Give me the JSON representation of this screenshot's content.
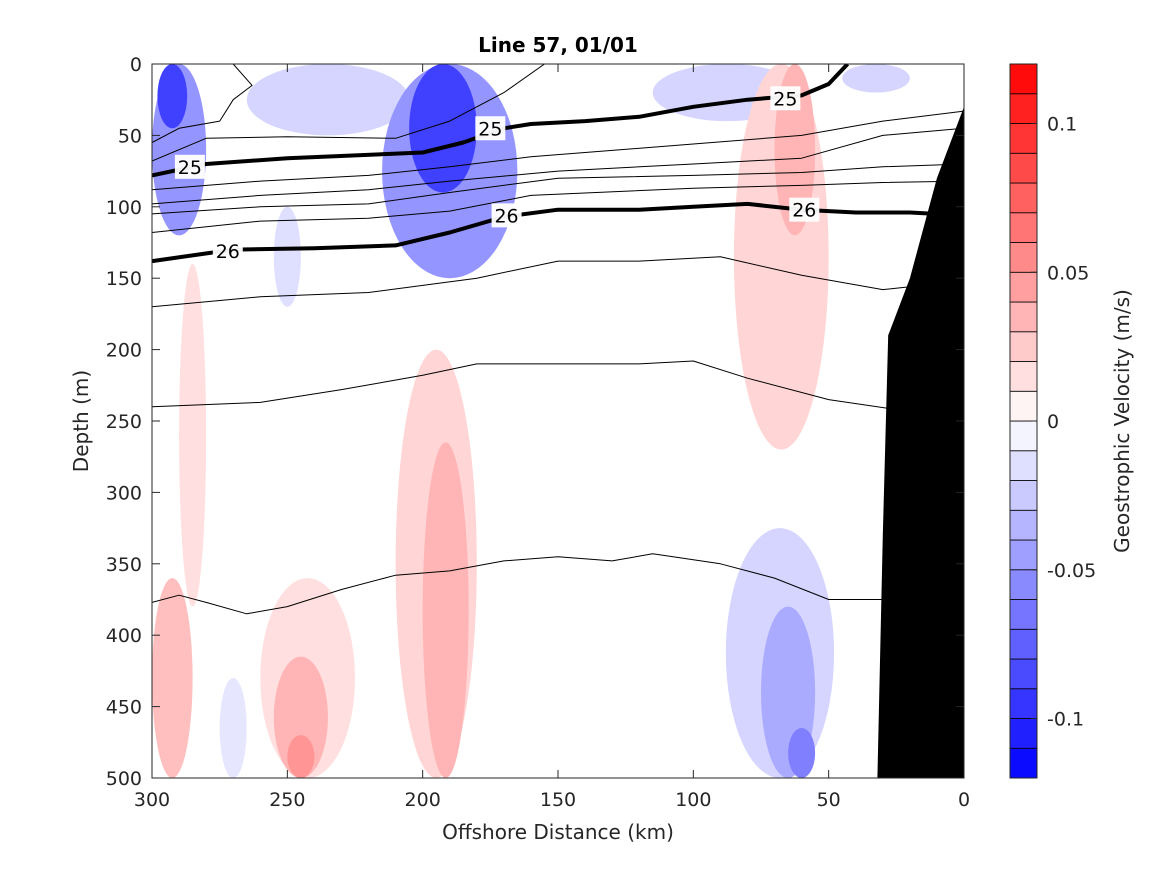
{
  "chart_data": {
    "type": "contour",
    "title": "Line 57, 01/01",
    "xlabel": "Offshore Distance (km)",
    "ylabel": "Depth (m)",
    "xlim": [
      300,
      0
    ],
    "ylim": [
      0,
      500
    ],
    "x_reversed": true,
    "y_reversed": true,
    "xticks": [
      300,
      250,
      200,
      150,
      100,
      50,
      0
    ],
    "yticks": [
      0,
      50,
      100,
      150,
      200,
      250,
      300,
      350,
      400,
      450,
      500
    ],
    "colorbar": {
      "label": "Geostrophic Velocity (m/s)",
      "range": [
        -0.12,
        0.12
      ],
      "step": 0.01,
      "ticks": [
        0.1,
        0.05,
        0,
        -0.05,
        -0.1
      ],
      "tick_labels": [
        "0.1",
        "0.05",
        "0",
        "-0.05",
        "-0.1"
      ],
      "negative_color": "#0000ff",
      "positive_color": "#ff0000",
      "zero_color": "#ffffff"
    },
    "velocity_regions": [
      {
        "x": [
          300,
          280
        ],
        "y": [
          0,
          120
        ],
        "value": -0.05
      },
      {
        "x": [
          298,
          287
        ],
        "y": [
          0,
          45
        ],
        "value": -0.09
      },
      {
        "x": [
          265,
          205
        ],
        "y": [
          0,
          50
        ],
        "value": -0.02
      },
      {
        "x": [
          255,
          245
        ],
        "y": [
          100,
          170
        ],
        "value": -0.015
      },
      {
        "x": [
          215,
          165
        ],
        "y": [
          0,
          150
        ],
        "value": -0.05
      },
      {
        "x": [
          205,
          180
        ],
        "y": [
          0,
          90
        ],
        "value": -0.09
      },
      {
        "x": [
          115,
          60
        ],
        "y": [
          0,
          40
        ],
        "value": -0.02
      },
      {
        "x": [
          45,
          20
        ],
        "y": [
          0,
          20
        ],
        "value": -0.02
      },
      {
        "x": [
          85,
          50
        ],
        "y": [
          0,
          270
        ],
        "value": 0.02
      },
      {
        "x": [
          70,
          55
        ],
        "y": [
          0,
          120
        ],
        "value": 0.035
      },
      {
        "x": [
          290,
          280
        ],
        "y": [
          140,
          380
        ],
        "value": 0.015
      },
      {
        "x": [
          300,
          285
        ],
        "y": [
          360,
          500
        ],
        "value": 0.03
      },
      {
        "x": [
          210,
          180
        ],
        "y": [
          200,
          500
        ],
        "value": 0.02
      },
      {
        "x": [
          200,
          183
        ],
        "y": [
          265,
          500
        ],
        "value": 0.035
      },
      {
        "x": [
          260,
          225
        ],
        "y": [
          360,
          500
        ],
        "value": 0.015
      },
      {
        "x": [
          255,
          235
        ],
        "y": [
          415,
          500
        ],
        "value": 0.035
      },
      {
        "x": [
          250,
          240
        ],
        "y": [
          470,
          500
        ],
        "value": 0.05
      },
      {
        "x": [
          275,
          265
        ],
        "y": [
          430,
          500
        ],
        "value": -0.012
      },
      {
        "x": [
          88,
          48
        ],
        "y": [
          325,
          500
        ],
        "value": -0.02
      },
      {
        "x": [
          75,
          55
        ],
        "y": [
          380,
          500
        ],
        "value": -0.04
      },
      {
        "x": [
          65,
          55
        ],
        "y": [
          465,
          500
        ],
        "value": -0.06
      }
    ],
    "density_contours": [
      {
        "label": "25",
        "bold": true,
        "points": [
          [
            300,
            78
          ],
          [
            280,
            70
          ],
          [
            250,
            66
          ],
          [
            200,
            62
          ],
          [
            185,
            55
          ],
          [
            170,
            45
          ],
          [
            160,
            42
          ],
          [
            140,
            40
          ],
          [
            120,
            37
          ],
          [
            100,
            30
          ],
          [
            80,
            25
          ],
          [
            60,
            22
          ],
          [
            50,
            14
          ],
          [
            43,
            0
          ]
        ]
      },
      {
        "label": "26",
        "bold": true,
        "points": [
          [
            300,
            138
          ],
          [
            270,
            130
          ],
          [
            240,
            129
          ],
          [
            210,
            127
          ],
          [
            190,
            118
          ],
          [
            170,
            107
          ],
          [
            150,
            102
          ],
          [
            120,
            102
          ],
          [
            100,
            100
          ],
          [
            80,
            98
          ],
          [
            60,
            102
          ],
          [
            40,
            104
          ],
          [
            20,
            104
          ],
          [
            0,
            106
          ]
        ]
      },
      {
        "label": "",
        "bold": false,
        "points": [
          [
            300,
            55
          ],
          [
            290,
            45
          ],
          [
            275,
            40
          ],
          [
            270,
            25
          ],
          [
            263,
            15
          ],
          [
            270,
            0
          ]
        ]
      },
      {
        "label": "",
        "bold": false,
        "points": [
          [
            300,
            68
          ],
          [
            280,
            52
          ],
          [
            250,
            51
          ],
          [
            210,
            52
          ],
          [
            190,
            40
          ],
          [
            170,
            20
          ],
          [
            155,
            0
          ]
        ]
      },
      {
        "label": "",
        "bold": false,
        "points": [
          [
            300,
            88
          ],
          [
            260,
            82
          ],
          [
            220,
            78
          ],
          [
            190,
            72
          ],
          [
            160,
            65
          ],
          [
            100,
            56
          ],
          [
            60,
            50
          ],
          [
            30,
            40
          ],
          [
            0,
            33
          ]
        ]
      },
      {
        "label": "",
        "bold": false,
        "points": [
          [
            300,
            98
          ],
          [
            260,
            92
          ],
          [
            220,
            88
          ],
          [
            190,
            82
          ],
          [
            150,
            75
          ],
          [
            100,
            70
          ],
          [
            60,
            66
          ],
          [
            30,
            50
          ],
          [
            0,
            45
          ]
        ]
      },
      {
        "label": "",
        "bold": false,
        "points": [
          [
            300,
            105
          ],
          [
            260,
            100
          ],
          [
            220,
            98
          ],
          [
            190,
            90
          ],
          [
            150,
            80
          ],
          [
            100,
            78
          ],
          [
            60,
            76
          ],
          [
            30,
            72
          ],
          [
            0,
            70
          ]
        ]
      },
      {
        "label": "",
        "bold": false,
        "points": [
          [
            300,
            118
          ],
          [
            260,
            110
          ],
          [
            220,
            108
          ],
          [
            190,
            103
          ],
          [
            160,
            92
          ],
          [
            100,
            87
          ],
          [
            60,
            85
          ],
          [
            30,
            83
          ],
          [
            0,
            82
          ]
        ]
      },
      {
        "label": "",
        "bold": false,
        "points": [
          [
            300,
            170
          ],
          [
            260,
            163
          ],
          [
            220,
            160
          ],
          [
            180,
            150
          ],
          [
            150,
            138
          ],
          [
            120,
            138
          ],
          [
            90,
            135
          ],
          [
            60,
            148
          ],
          [
            30,
            158
          ],
          [
            20,
            156
          ]
        ]
      },
      {
        "label": "",
        "bold": false,
        "points": [
          [
            300,
            240
          ],
          [
            260,
            237
          ],
          [
            230,
            228
          ],
          [
            200,
            218
          ],
          [
            180,
            210
          ],
          [
            150,
            210
          ],
          [
            120,
            210
          ],
          [
            100,
            208
          ],
          [
            80,
            220
          ],
          [
            50,
            235
          ],
          [
            25,
            242
          ]
        ]
      },
      {
        "label": "",
        "bold": false,
        "points": [
          [
            300,
            377
          ],
          [
            290,
            372
          ],
          [
            280,
            377
          ],
          [
            265,
            385
          ],
          [
            250,
            380
          ],
          [
            230,
            368
          ],
          [
            210,
            358
          ],
          [
            190,
            355
          ],
          [
            170,
            348
          ],
          [
            150,
            345
          ],
          [
            130,
            348
          ],
          [
            115,
            343
          ],
          [
            90,
            350
          ],
          [
            70,
            360
          ],
          [
            50,
            375
          ],
          [
            30,
            375
          ]
        ]
      }
    ],
    "contour_labels": [
      {
        "text": "25",
        "x": 286,
        "y": 72
      },
      {
        "text": "25",
        "x": 66,
        "y": 24
      },
      {
        "text": "25",
        "x": 175,
        "y": 45
      },
      {
        "text": "26",
        "x": 272,
        "y": 131
      },
      {
        "text": "26",
        "x": 169,
        "y": 106
      },
      {
        "text": "26",
        "x": 59,
        "y": 102
      }
    ],
    "bathymetry": {
      "color": "#000000",
      "points": [
        [
          0,
          30
        ],
        [
          10,
          80
        ],
        [
          20,
          150
        ],
        [
          28,
          190
        ],
        [
          30,
          330
        ],
        [
          32,
          500
        ],
        [
          0,
          500
        ]
      ]
    }
  }
}
